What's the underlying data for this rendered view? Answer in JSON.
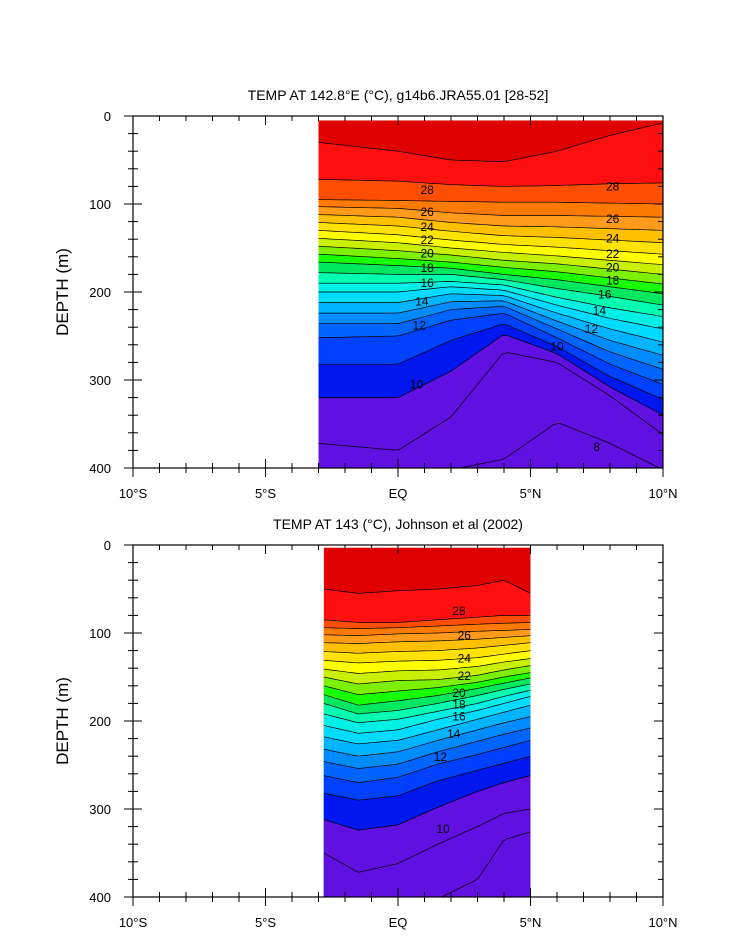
{
  "chart_data": [
    {
      "type": "contour",
      "title": "TEMP AT 142.8°E (°C), g14b6.JRA55.01 [28-52]",
      "ylabel": "DEPTH (m)",
      "xlim": [
        -10,
        10
      ],
      "ylim": [
        400,
        0
      ],
      "x_ticks": [
        {
          "value": -10,
          "label": "10°S"
        },
        {
          "value": -5,
          "label": "5°S"
        },
        {
          "value": 0,
          "label": "EQ"
        },
        {
          "value": 5,
          "label": "5°N"
        },
        {
          "value": 10,
          "label": "10°N"
        }
      ],
      "y_ticks": [
        0,
        100,
        200,
        300,
        400
      ],
      "data_extent": {
        "x": [
          -3,
          10
        ],
        "depth": [
          5,
          400
        ]
      },
      "contour_interval": 1,
      "colormap": [
        "#e00000",
        "#ff1010",
        "#ff4e00",
        "#ff7a00",
        "#ff9a1a",
        "#ffc000",
        "#ffe200",
        "#ffff00",
        "#c8f000",
        "#7cf000",
        "#18ff00",
        "#00e860",
        "#00ffb0",
        "#00f0e6",
        "#00dcff",
        "#00b4ff",
        "#008cff",
        "#0064ff",
        "#0040ff",
        "#0018f0",
        "#6010e0"
      ],
      "field_depths": {
        "x": [
          -3,
          0,
          2,
          4,
          6,
          8,
          10
        ],
        "isotherms": [
          {
            "t": 29,
            "d": [
              30,
              40,
              50,
              52,
              40,
              22,
              8
            ]
          },
          {
            "t": 28,
            "d": [
              72,
              74,
              78,
              80,
              79,
              77,
              76
            ]
          },
          {
            "t": 27,
            "d": [
              95,
              96,
              97,
              98,
              98,
              99,
              100
            ]
          },
          {
            "t": 26,
            "d": [
              103,
              105,
              110,
              113,
              113,
              114,
              115
            ]
          },
          {
            "t": 25,
            "d": [
              112,
              115,
              121,
              125,
              126,
              128,
              130
            ]
          },
          {
            "t": 24,
            "d": [
              121,
              125,
              131,
              136,
              138,
              141,
              144
            ]
          },
          {
            "t": 23,
            "d": [
              130,
              135,
              141,
              146,
              149,
              153,
              157
            ]
          },
          {
            "t": 22,
            "d": [
              139,
              144,
              150,
              155,
              159,
              164,
              169
            ]
          },
          {
            "t": 21,
            "d": [
              148,
              153,
              158,
              164,
              168,
              174,
              180
            ]
          },
          {
            "t": 20,
            "d": [
              157,
              162,
              166,
              172,
              177,
              184,
              191
            ]
          },
          {
            "t": 19,
            "d": [
              166,
              170,
              173,
              180,
              186,
              194,
              202
            ]
          },
          {
            "t": 18,
            "d": [
              178,
              180,
              180,
              186,
              196,
              205,
              215
            ]
          },
          {
            "t": 17,
            "d": [
              190,
              190,
              188,
              192,
              206,
              218,
              228
            ]
          },
          {
            "t": 16,
            "d": [
              200,
              200,
              194,
              198,
              215,
              230,
              242
            ]
          },
          {
            "t": 15,
            "d": [
              212,
              212,
              202,
              204,
              224,
              242,
              257
            ]
          },
          {
            "t": 14,
            "d": [
              224,
              224,
              211,
              210,
              233,
              255,
              272
            ]
          },
          {
            "t": 13,
            "d": [
              236,
              236,
              220,
              216,
              242,
              268,
              288
            ]
          },
          {
            "t": 12,
            "d": [
              252,
              250,
              232,
              224,
              252,
              282,
              305
            ]
          },
          {
            "t": 11,
            "d": [
              282,
              282,
              255,
              236,
              262,
              296,
              322
            ]
          },
          {
            "t": 10,
            "d": [
              320,
              320,
              290,
              248,
              270,
              308,
              340
            ]
          },
          {
            "t": 9,
            "d": [
              372,
              380,
              342,
              268,
              280,
              318,
              362
            ]
          },
          {
            "t": 8,
            "d": [
              402,
              402,
              402,
              390,
              348,
              372,
              402
            ]
          }
        ]
      },
      "contour_labels": [
        {
          "x": 1.1,
          "depth": 84,
          "text": "28"
        },
        {
          "x": 8.1,
          "depth": 80,
          "text": "28"
        },
        {
          "x": 1.1,
          "depth": 109,
          "text": "26"
        },
        {
          "x": 8.1,
          "depth": 117,
          "text": "26"
        },
        {
          "x": 1.1,
          "depth": 126,
          "text": "24"
        },
        {
          "x": 8.1,
          "depth": 139,
          "text": "24"
        },
        {
          "x": 1.1,
          "depth": 141,
          "text": "22"
        },
        {
          "x": 8.1,
          "depth": 157,
          "text": "22"
        },
        {
          "x": 1.1,
          "depth": 156,
          "text": "20"
        },
        {
          "x": 8.1,
          "depth": 172,
          "text": "20"
        },
        {
          "x": 1.1,
          "depth": 173,
          "text": "18"
        },
        {
          "x": 8.1,
          "depth": 187,
          "text": "18"
        },
        {
          "x": 1.1,
          "depth": 190,
          "text": "16"
        },
        {
          "x": 7.8,
          "depth": 203,
          "text": "16"
        },
        {
          "x": 0.9,
          "depth": 211,
          "text": "14"
        },
        {
          "x": 7.6,
          "depth": 221,
          "text": "14"
        },
        {
          "x": 0.8,
          "depth": 238,
          "text": "12"
        },
        {
          "x": 7.3,
          "depth": 242,
          "text": "12"
        },
        {
          "x": 6.0,
          "depth": 262,
          "text": "10"
        },
        {
          "x": 0.7,
          "depth": 305,
          "text": "10"
        },
        {
          "x": 7.5,
          "depth": 376,
          "text": "8"
        }
      ]
    },
    {
      "type": "contour",
      "title": "TEMP AT 143 (°C), Johnson et al (2002)",
      "ylabel": "DEPTH (m)",
      "xlim": [
        -10,
        10
      ],
      "ylim": [
        400,
        0
      ],
      "x_ticks": [
        {
          "value": -10,
          "label": "10°S"
        },
        {
          "value": -5,
          "label": "5°S"
        },
        {
          "value": 0,
          "label": "EQ"
        },
        {
          "value": 5,
          "label": "5°N"
        },
        {
          "value": 10,
          "label": "10°N"
        }
      ],
      "y_ticks": [
        0,
        100,
        200,
        300,
        400
      ],
      "data_extent": {
        "x": [
          -2.8,
          5
        ],
        "depth": [
          3,
          400
        ]
      },
      "contour_interval": 1,
      "colormap": [
        "#e00000",
        "#ff1010",
        "#ff4e00",
        "#ff7a00",
        "#ff9a1a",
        "#ffc000",
        "#ffe200",
        "#ffff00",
        "#c8f000",
        "#7cf000",
        "#18ff00",
        "#00e860",
        "#00ffb0",
        "#00f0e6",
        "#00dcff",
        "#00b4ff",
        "#008cff",
        "#0064ff",
        "#0040ff",
        "#0018f0",
        "#6010e0"
      ],
      "field_depths": {
        "x": [
          -2.8,
          -1.5,
          0,
          1.5,
          3,
          4,
          5
        ],
        "isotherms": [
          {
            "t": 29,
            "d": [
              50,
              55,
              52,
              50,
              46,
              40,
              55
            ]
          },
          {
            "t": 28,
            "d": [
              85,
              88,
              88,
              85,
              82,
              80,
              80
            ]
          },
          {
            "t": 27,
            "d": [
              94,
              95,
              94,
              92,
              90,
              89,
              88
            ]
          },
          {
            "t": 26,
            "d": [
              102,
              103,
              101,
              100,
              98,
              97,
              96
            ]
          },
          {
            "t": 25,
            "d": [
              111,
              112,
              110,
              109,
              107,
              105,
              103
            ]
          },
          {
            "t": 24,
            "d": [
              121,
              123,
              121,
              120,
              117,
              114,
              111
            ]
          },
          {
            "t": 23,
            "d": [
              131,
              134,
              132,
              131,
              128,
              124,
              120
            ]
          },
          {
            "t": 22,
            "d": [
              141,
              146,
              143,
              142,
              138,
              133,
              129
            ]
          },
          {
            "t": 21,
            "d": [
              150,
              158,
              154,
              153,
              148,
              142,
              137
            ]
          },
          {
            "t": 20,
            "d": [
              160,
              170,
              166,
              162,
              156,
              150,
              145
            ]
          },
          {
            "t": 19,
            "d": [
              170,
              182,
              177,
              171,
              163,
              157,
              151
            ]
          },
          {
            "t": 18,
            "d": [
              180,
              192,
              188,
              180,
              171,
              164,
              158
            ]
          },
          {
            "t": 17,
            "d": [
              192,
              202,
              198,
              189,
              180,
              172,
              165
            ]
          },
          {
            "t": 16,
            "d": [
              205,
              214,
              210,
              198,
              188,
              180,
              172
            ]
          },
          {
            "t": 15,
            "d": [
              218,
              226,
              222,
              210,
              198,
              190,
              182
            ]
          },
          {
            "t": 14,
            "d": [
              232,
              240,
              235,
              222,
              210,
              202,
              195
            ]
          },
          {
            "t": 13,
            "d": [
              246,
              254,
              249,
              235,
              223,
              215,
              208
            ]
          },
          {
            "t": 12,
            "d": [
              262,
              270,
              264,
              249,
              238,
              230,
              222
            ]
          },
          {
            "t": 11,
            "d": [
              282,
              290,
              285,
              268,
              256,
              248,
              240
            ]
          },
          {
            "t": 10,
            "d": [
              312,
              324,
              318,
              298,
              280,
              270,
              262
            ]
          },
          {
            "t": 9,
            "d": [
              350,
              372,
              362,
              340,
              320,
              305,
              300
            ]
          },
          {
            "t": 8,
            "d": [
              402,
              402,
              402,
              402,
              380,
              335,
              326
            ]
          }
        ]
      },
      "contour_labels": [
        {
          "x": 2.3,
          "depth": 75,
          "text": "28"
        },
        {
          "x": 2.5,
          "depth": 103,
          "text": "26"
        },
        {
          "x": 2.5,
          "depth": 129,
          "text": "24"
        },
        {
          "x": 2.5,
          "depth": 149,
          "text": "22"
        },
        {
          "x": 2.3,
          "depth": 168,
          "text": "20"
        },
        {
          "x": 2.3,
          "depth": 181,
          "text": "18"
        },
        {
          "x": 2.3,
          "depth": 195,
          "text": "16"
        },
        {
          "x": 2.1,
          "depth": 215,
          "text": "14"
        },
        {
          "x": 1.6,
          "depth": 241,
          "text": "12"
        },
        {
          "x": 1.7,
          "depth": 323,
          "text": "10"
        }
      ]
    }
  ]
}
